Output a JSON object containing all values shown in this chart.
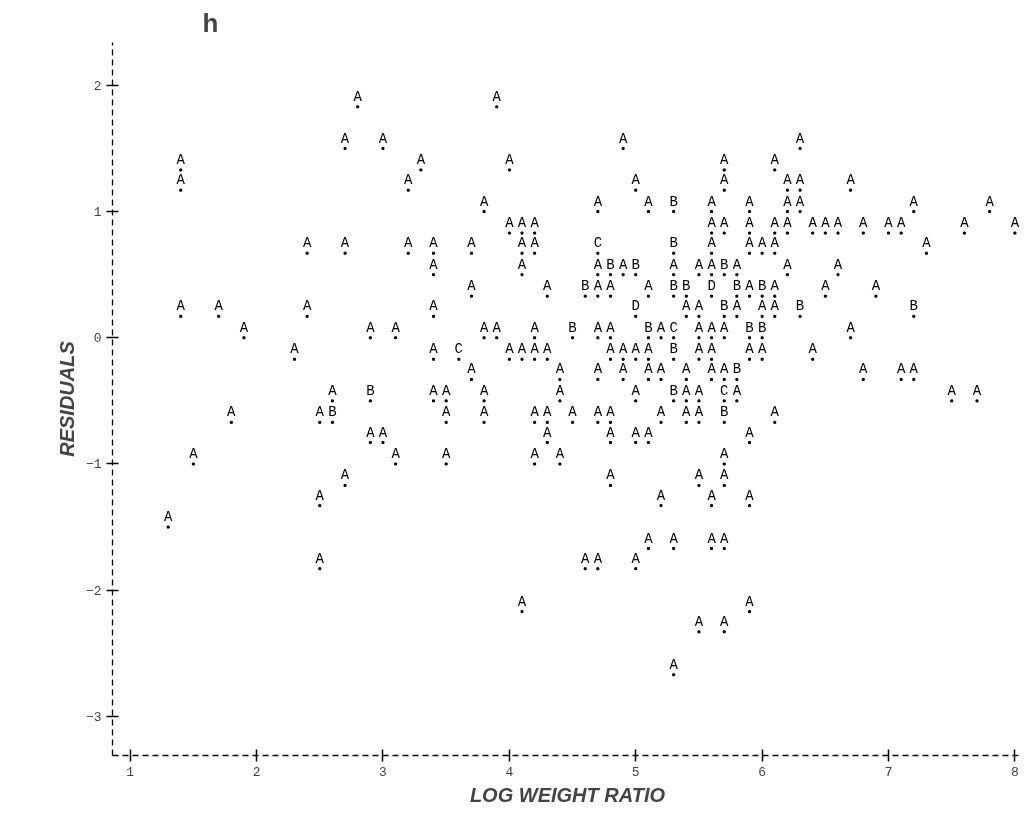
{
  "chart_data": {
    "type": "scatter",
    "title": "h",
    "xlabel": "LOG WEIGHT RATIO",
    "ylabel": "RESIDUALS",
    "data_labels": true,
    "xlim": [
      0.86,
      8.06
    ],
    "ylim": [
      -3.31,
      2.34
    ],
    "xticks": [
      1,
      2,
      3,
      4,
      5,
      6,
      7,
      8
    ],
    "yticks": [
      -3,
      -2,
      -1,
      0,
      1,
      2
    ],
    "series": [
      {
        "color": "#000000",
        "x": [
          2.8,
          3.9
        ],
        "values": [
          1.83,
          1.83
        ],
        "value_labels": [
          "A",
          "A"
        ]
      },
      {
        "color": "#000000",
        "x": [
          2.7,
          3.0,
          4.9,
          6.3
        ],
        "values": [
          1.5,
          1.5,
          1.5,
          1.5
        ],
        "value_labels": [
          "A",
          "A",
          "A",
          "A"
        ]
      },
      {
        "color": "#000000",
        "x": [
          1.4,
          3.3,
          4.0,
          5.7,
          6.1
        ],
        "values": [
          1.33,
          1.33,
          1.33,
          1.33,
          1.33
        ],
        "value_labels": [
          "A",
          "A",
          "A",
          "A",
          "A"
        ]
      },
      {
        "color": "#000000",
        "x": [
          1.4,
          3.2,
          5.0,
          5.7,
          6.2,
          6.3,
          6.7
        ],
        "values": [
          1.17,
          1.17,
          1.17,
          1.17,
          1.17,
          1.17,
          1.17
        ],
        "value_labels": [
          "A",
          "A",
          "A",
          "A",
          "A",
          "A",
          "A"
        ]
      },
      {
        "color": "#000000",
        "x": [
          3.8,
          4.7,
          5.1,
          5.3,
          5.6,
          5.9,
          6.2,
          6.3,
          7.2,
          7.8
        ],
        "values": [
          1.0,
          1.0,
          1.0,
          1.0,
          1.0,
          1.0,
          1.0,
          1.0,
          1.0,
          1.0
        ],
        "value_labels": [
          "A",
          "A",
          "A",
          "B",
          "A",
          "A",
          "A",
          "A",
          "A",
          "A"
        ]
      },
      {
        "color": "#000000",
        "x": [
          4.0,
          4.1,
          4.2,
          5.6,
          5.7,
          5.9,
          6.1,
          6.2,
          6.4,
          6.5,
          6.6,
          6.8,
          7.0,
          7.1,
          7.6,
          8.0
        ],
        "values": [
          0.83,
          0.83,
          0.83,
          0.83,
          0.83,
          0.83,
          0.83,
          0.83,
          0.83,
          0.83,
          0.83,
          0.83,
          0.83,
          0.83,
          0.83,
          0.83
        ],
        "value_labels": [
          "A",
          "A",
          "A",
          "A",
          "A",
          "A",
          "A",
          "A",
          "A",
          "A",
          "A",
          "A",
          "A",
          "A",
          "A",
          "A"
        ]
      },
      {
        "color": "#000000",
        "x": [
          2.4,
          2.7,
          3.2,
          3.4,
          3.7,
          4.1,
          4.2,
          4.7,
          5.3,
          5.6,
          5.9,
          6.0,
          6.1,
          7.3
        ],
        "values": [
          0.67,
          0.67,
          0.67,
          0.67,
          0.67,
          0.67,
          0.67,
          0.67,
          0.67,
          0.67,
          0.67,
          0.67,
          0.67,
          0.67
        ],
        "value_labels": [
          "A",
          "A",
          "A",
          "A",
          "A",
          "A",
          "A",
          "C",
          "B",
          "A",
          "A",
          "A",
          "A",
          "A"
        ]
      },
      {
        "color": "#000000",
        "x": [
          3.4,
          4.1,
          4.7,
          4.8,
          4.9,
          5.0,
          5.3,
          5.5,
          5.6,
          5.7,
          5.8,
          6.2,
          6.6
        ],
        "values": [
          0.5,
          0.5,
          0.5,
          0.5,
          0.5,
          0.5,
          0.5,
          0.5,
          0.5,
          0.5,
          0.5,
          0.5,
          0.5
        ],
        "value_labels": [
          "A",
          "A",
          "A",
          "B",
          "A",
          "B",
          "A",
          "A",
          "A",
          "B",
          "A",
          "A",
          "A"
        ]
      },
      {
        "color": "#000000",
        "x": [
          3.7,
          4.3,
          4.6,
          4.7,
          4.8,
          5.1,
          5.3,
          5.4,
          5.6,
          5.8,
          5.9,
          6.0,
          6.1,
          6.5,
          6.9
        ],
        "values": [
          0.33,
          0.33,
          0.33,
          0.33,
          0.33,
          0.33,
          0.33,
          0.33,
          0.33,
          0.33,
          0.33,
          0.33,
          0.33,
          0.33,
          0.33
        ],
        "value_labels": [
          "A",
          "A",
          "B",
          "A",
          "A",
          "A",
          "B",
          "B",
          "D",
          "B",
          "A",
          "B",
          "A",
          "A",
          "A"
        ]
      },
      {
        "color": "#000000",
        "x": [
          1.4,
          1.7,
          2.4,
          3.4,
          5.0,
          5.4,
          5.5,
          5.7,
          5.8,
          6.0,
          6.1,
          6.3,
          7.2
        ],
        "values": [
          0.17,
          0.17,
          0.17,
          0.17,
          0.17,
          0.17,
          0.17,
          0.17,
          0.17,
          0.17,
          0.17,
          0.17,
          0.17
        ],
        "value_labels": [
          "A",
          "A",
          "A",
          "A",
          "D",
          "A",
          "A",
          "B",
          "A",
          "A",
          "A",
          "B",
          "B"
        ]
      },
      {
        "color": "#000000",
        "x": [
          1.9,
          2.9,
          3.1,
          3.8,
          3.9,
          4.2,
          4.5,
          4.7,
          4.8,
          5.1,
          5.2,
          5.3,
          5.5,
          5.6,
          5.7,
          5.9,
          6.0,
          6.7
        ],
        "values": [
          0,
          0,
          0,
          0,
          0,
          0,
          0,
          0,
          0,
          0,
          0,
          0,
          0,
          0,
          0,
          0,
          0,
          0
        ],
        "value_labels": [
          "A",
          "A",
          "A",
          "A",
          "A",
          "A",
          "B",
          "A",
          "A",
          "B",
          "A",
          "C",
          "A",
          "A",
          "A",
          "B",
          "B",
          "A"
        ]
      },
      {
        "color": "#000000",
        "x": [
          2.3,
          3.4,
          3.6,
          4.0,
          4.1,
          4.2,
          4.3,
          4.8,
          4.9,
          5.0,
          5.1,
          5.3,
          5.5,
          5.6,
          5.9,
          6.0,
          6.4
        ],
        "values": [
          -0.17,
          -0.17,
          -0.17,
          -0.17,
          -0.17,
          -0.17,
          -0.17,
          -0.17,
          -0.17,
          -0.17,
          -0.17,
          -0.17,
          -0.17,
          -0.17,
          -0.17,
          -0.17,
          -0.17
        ],
        "value_labels": [
          "A",
          "A",
          "C",
          "A",
          "A",
          "A",
          "A",
          "A",
          "A",
          "A",
          "A",
          "B",
          "A",
          "A",
          "A",
          "A",
          "A"
        ]
      },
      {
        "color": "#000000",
        "x": [
          3.7,
          4.4,
          4.7,
          4.9,
          5.1,
          5.2,
          5.4,
          5.6,
          5.7,
          5.8,
          6.8,
          7.1,
          7.2
        ],
        "values": [
          -0.33,
          -0.33,
          -0.33,
          -0.33,
          -0.33,
          -0.33,
          -0.33,
          -0.33,
          -0.33,
          -0.33,
          -0.33,
          -0.33,
          -0.33
        ],
        "value_labels": [
          "A",
          "A",
          "A",
          "A",
          "A",
          "A",
          "A",
          "A",
          "A",
          "B",
          "A",
          "A",
          "A"
        ]
      },
      {
        "color": "#000000",
        "x": [
          2.6,
          2.9,
          3.4,
          3.5,
          3.8,
          4.4,
          5.0,
          5.3,
          5.4,
          5.5,
          5.7,
          5.8,
          7.5,
          7.7
        ],
        "values": [
          -0.5,
          -0.5,
          -0.5,
          -0.5,
          -0.5,
          -0.5,
          -0.5,
          -0.5,
          -0.5,
          -0.5,
          -0.5,
          -0.5,
          -0.5,
          -0.5
        ],
        "value_labels": [
          "A",
          "B",
          "A",
          "A",
          "A",
          "A",
          "A",
          "B",
          "A",
          "A",
          "C",
          "A",
          "A",
          "A"
        ]
      },
      {
        "color": "#000000",
        "x": [
          1.8,
          2.5,
          2.6,
          3.5,
          3.8,
          4.2,
          4.3,
          4.5,
          4.7,
          4.8,
          5.2,
          5.4,
          5.5,
          5.7,
          6.1
        ],
        "values": [
          -0.67,
          -0.67,
          -0.67,
          -0.67,
          -0.67,
          -0.67,
          -0.67,
          -0.67,
          -0.67,
          -0.67,
          -0.67,
          -0.67,
          -0.67,
          -0.67,
          -0.67
        ],
        "value_labels": [
          "A",
          "A",
          "B",
          "A",
          "A",
          "A",
          "A",
          "A",
          "A",
          "A",
          "A",
          "A",
          "A",
          "B",
          "A"
        ]
      },
      {
        "color": "#000000",
        "x": [
          2.9,
          3.0,
          4.3,
          4.8,
          5.0,
          5.1,
          5.9
        ],
        "values": [
          -0.83,
          -0.83,
          -0.83,
          -0.83,
          -0.83,
          -0.83,
          -0.83
        ],
        "value_labels": [
          "A",
          "A",
          "A",
          "A",
          "A",
          "A",
          "A"
        ]
      },
      {
        "color": "#000000",
        "x": [
          1.5,
          3.1,
          3.5,
          4.2,
          4.4,
          5.7
        ],
        "values": [
          -1.0,
          -1.0,
          -1.0,
          -1.0,
          -1.0,
          -1.0
        ],
        "value_labels": [
          "A",
          "A",
          "A",
          "A",
          "A",
          "A"
        ]
      },
      {
        "color": "#000000",
        "x": [
          2.7,
          4.8,
          5.5,
          5.7
        ],
        "values": [
          -1.17,
          -1.17,
          -1.17,
          -1.17
        ],
        "value_labels": [
          "A",
          "A",
          "A",
          "A"
        ]
      },
      {
        "color": "#000000",
        "x": [
          2.5,
          5.2,
          5.6,
          5.9
        ],
        "values": [
          -1.33,
          -1.33,
          -1.33,
          -1.33
        ],
        "value_labels": [
          "A",
          "A",
          "A",
          "A"
        ]
      },
      {
        "color": "#000000",
        "x": [
          1.3
        ],
        "values": [
          -1.5
        ],
        "value_labels": [
          "A"
        ]
      },
      {
        "color": "#000000",
        "x": [
          5.1,
          5.3,
          5.6,
          5.7
        ],
        "values": [
          -1.67,
          -1.67,
          -1.67,
          -1.67
        ],
        "value_labels": [
          "A",
          "A",
          "A",
          "A"
        ]
      },
      {
        "color": "#000000",
        "x": [
          2.5,
          4.6,
          4.7,
          5.0
        ],
        "values": [
          -1.83,
          -1.83,
          -1.83,
          -1.83
        ],
        "value_labels": [
          "A",
          "A",
          "A",
          "A"
        ]
      },
      {
        "color": "#000000",
        "x": [
          4.1,
          5.9
        ],
        "values": [
          -2.17,
          -2.17
        ],
        "value_labels": [
          "A",
          "A"
        ]
      },
      {
        "color": "#000000",
        "x": [
          5.5,
          5.7
        ],
        "values": [
          -2.33,
          -2.33
        ],
        "value_labels": [
          "A",
          "A"
        ]
      },
      {
        "color": "#000000",
        "x": [
          5.3
        ],
        "values": [
          -2.67
        ],
        "value_labels": [
          "A"
        ]
      }
    ]
  }
}
